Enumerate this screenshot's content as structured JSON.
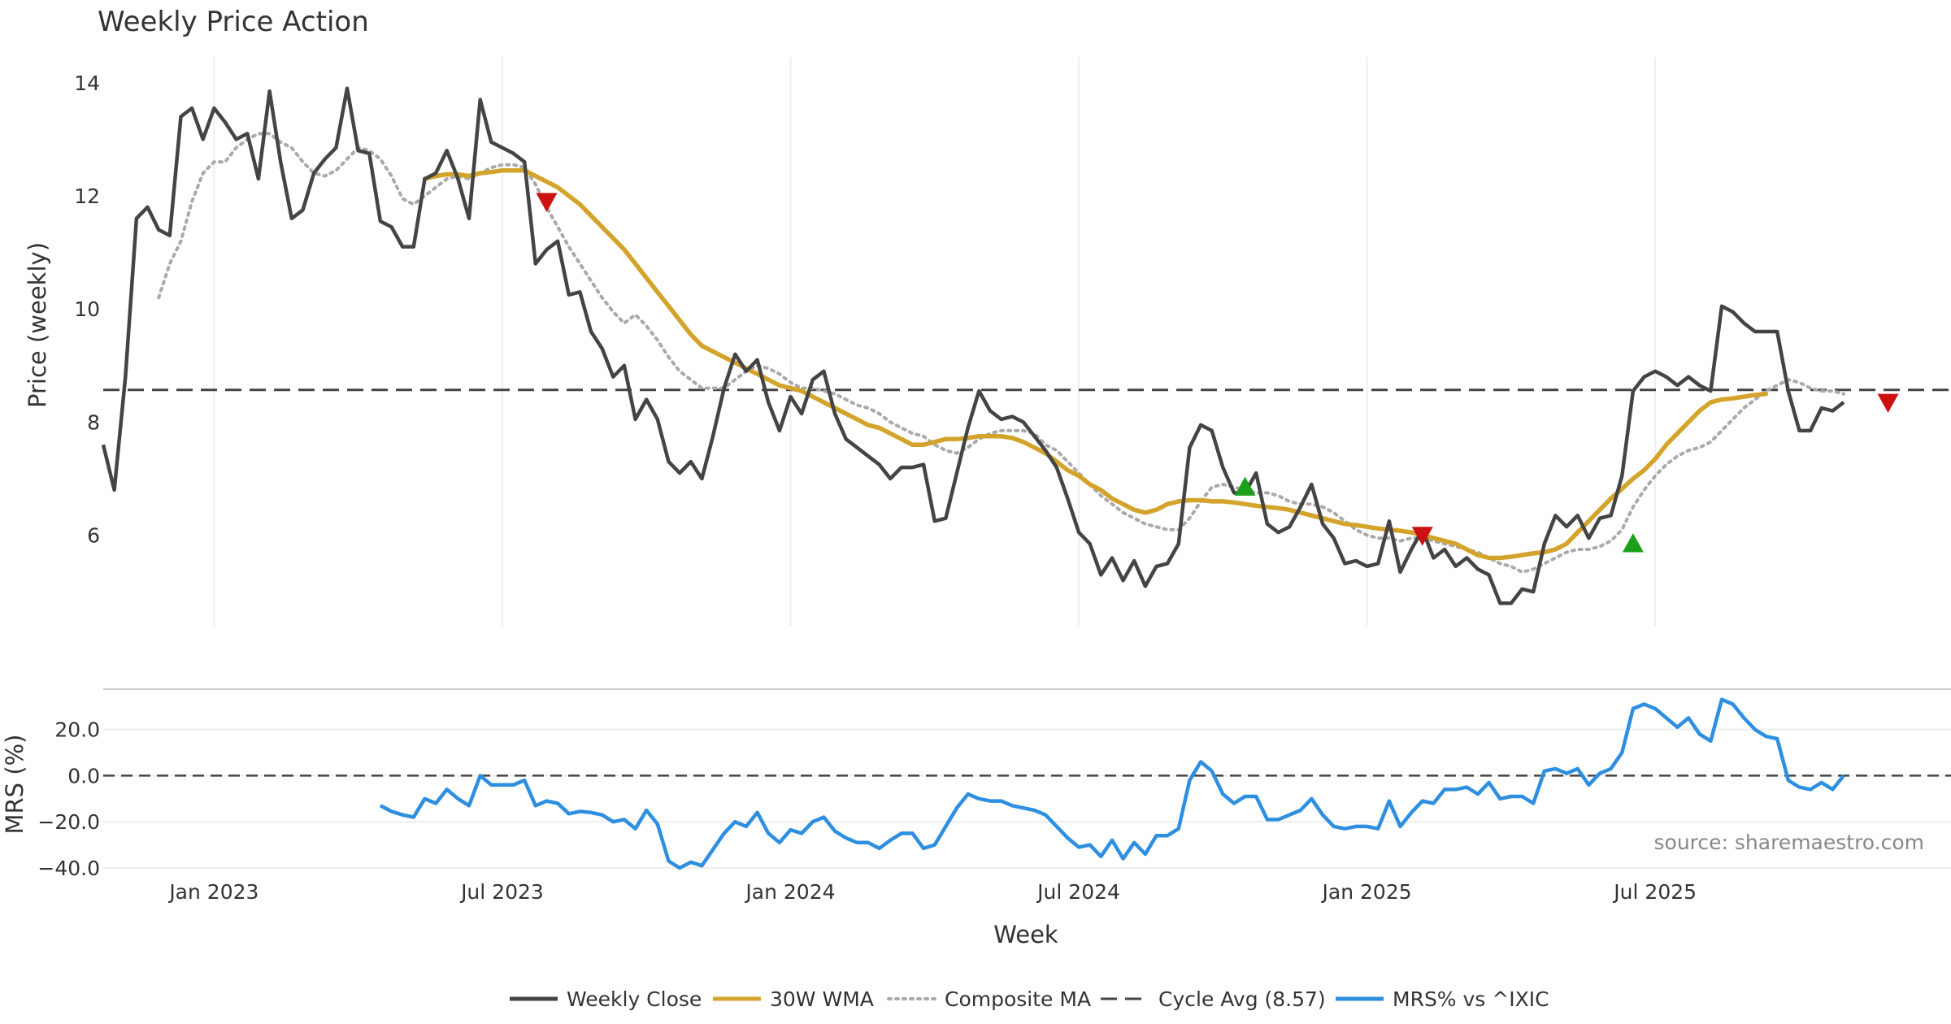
{
  "chart_data": {
    "type": "line",
    "title": "Weekly Price Action",
    "xlabel": "Week",
    "x_ticks": [
      "Jan 2023",
      "Jul 2023",
      "Jan 2024",
      "Jul 2024",
      "Jan 2025",
      "Jul 2025"
    ],
    "source": "source: sharemaestro.com",
    "colors": {
      "close": "#444444",
      "wma": "#D4A32B",
      "composite": "#AAAAAA",
      "cycle": "#444444",
      "mrs": "#2E8FE0",
      "buy": "#1AA01A",
      "sell": "#CC1111"
    },
    "price_panel": {
      "ylabel": "Price (weekly)",
      "ylim": [
        4.4,
        14.6
      ],
      "yticks": [
        "14",
        "12",
        "10",
        "8",
        "6"
      ],
      "ytick_values": [
        14,
        12,
        10,
        8,
        6
      ],
      "cycle_avg": 8.57,
      "weekly_close": [
        7.6,
        6.8,
        8.8,
        11.6,
        11.8,
        11.4,
        11.3,
        13.4,
        13.55,
        13.0,
        13.55,
        13.3,
        13.0,
        13.1,
        12.3,
        13.85,
        12.6,
        11.6,
        11.75,
        12.4,
        12.65,
        12.85,
        13.9,
        12.8,
        12.75,
        11.55,
        11.45,
        11.1,
        11.1,
        12.3,
        12.4,
        12.8,
        12.3,
        11.6,
        13.7,
        12.95,
        12.85,
        12.75,
        12.6,
        10.8,
        11.05,
        11.2,
        10.25,
        10.3,
        9.6,
        9.3,
        8.8,
        9.0,
        8.05,
        8.4,
        8.05,
        7.3,
        7.1,
        7.3,
        7.0,
        7.75,
        8.6,
        9.2,
        8.9,
        9.1,
        8.35,
        7.85,
        8.45,
        8.15,
        8.75,
        8.9,
        8.15,
        7.7,
        7.55,
        7.4,
        7.25,
        7.0,
        7.2,
        7.2,
        7.25,
        6.25,
        6.3,
        7.1,
        7.9,
        8.55,
        8.2,
        8.05,
        8.1,
        8.0,
        7.75,
        7.5,
        7.2,
        6.65,
        6.05,
        5.85,
        5.3,
        5.6,
        5.2,
        5.55,
        5.1,
        5.45,
        5.5,
        5.85,
        7.55,
        7.95,
        7.85,
        7.2,
        6.75,
        6.75,
        7.1,
        6.2,
        6.05,
        6.15,
        6.5,
        6.9,
        6.2,
        5.95,
        5.5,
        5.55,
        5.45,
        5.5,
        6.25,
        5.35,
        5.75,
        6.1,
        5.6,
        5.75,
        5.45,
        5.6,
        5.4,
        5.3,
        4.8,
        4.8,
        5.05,
        5.0,
        5.85,
        6.35,
        6.15,
        6.35,
        5.95,
        6.3,
        6.35,
        7.05,
        8.55,
        8.8,
        8.9,
        8.8,
        8.65,
        8.8,
        8.65,
        8.55,
        10.05,
        9.95,
        9.75,
        9.6,
        9.6,
        9.6,
        8.55,
        7.85,
        7.85,
        8.25,
        8.2,
        8.35
      ],
      "composite_ma": [
        null,
        null,
        null,
        null,
        null,
        10.2,
        10.8,
        11.2,
        11.9,
        12.4,
        12.6,
        12.6,
        12.85,
        13.0,
        13.1,
        13.1,
        12.95,
        12.85,
        12.6,
        12.4,
        12.35,
        12.45,
        12.65,
        12.85,
        12.8,
        12.65,
        12.35,
        11.95,
        11.85,
        12.0,
        12.15,
        12.3,
        12.35,
        12.3,
        12.4,
        12.5,
        12.55,
        12.55,
        12.5,
        12.2,
        11.8,
        11.45,
        11.1,
        10.8,
        10.5,
        10.2,
        9.95,
        9.75,
        9.9,
        9.7,
        9.45,
        9.15,
        8.9,
        8.75,
        8.6,
        8.6,
        8.6,
        8.75,
        8.9,
        9.0,
        8.95,
        8.85,
        8.7,
        8.6,
        8.6,
        8.55,
        8.5,
        8.4,
        8.3,
        8.25,
        8.15,
        8.0,
        7.9,
        7.8,
        7.75,
        7.6,
        7.5,
        7.45,
        7.55,
        7.7,
        7.8,
        7.85,
        7.85,
        7.85,
        7.8,
        7.6,
        7.5,
        7.3,
        7.1,
        6.9,
        6.7,
        6.55,
        6.4,
        6.3,
        6.2,
        6.15,
        6.1,
        6.1,
        6.3,
        6.6,
        6.85,
        6.9,
        6.85,
        6.8,
        6.75,
        6.75,
        6.7,
        6.6,
        6.55,
        6.55,
        6.5,
        6.4,
        6.25,
        6.1,
        6.0,
        5.95,
        5.95,
        5.9,
        5.95,
        5.95,
        5.9,
        5.85,
        5.8,
        5.75,
        5.7,
        5.6,
        5.5,
        5.45,
        5.35,
        5.4,
        5.5,
        5.6,
        5.7,
        5.75,
        5.75,
        5.8,
        5.9,
        6.1,
        6.5,
        6.8,
        7.05,
        7.25,
        7.4,
        7.5,
        7.55,
        7.65,
        7.85,
        8.05,
        8.25,
        8.4,
        8.55,
        8.65,
        8.75,
        8.7,
        8.6,
        8.55,
        8.55,
        8.5
      ],
      "wma_start_index": 29,
      "wma_30w": [
        12.3,
        12.35,
        12.38,
        12.38,
        12.35,
        12.4,
        12.42,
        12.45,
        12.45,
        12.45,
        12.35,
        12.25,
        12.15,
        12.0,
        11.85,
        11.65,
        11.45,
        11.25,
        11.05,
        10.8,
        10.55,
        10.3,
        10.05,
        9.8,
        9.55,
        9.35,
        9.25,
        9.15,
        9.05,
        8.95,
        8.85,
        8.75,
        8.65,
        8.6,
        8.55,
        8.45,
        8.35,
        8.25,
        8.15,
        8.05,
        7.95,
        7.9,
        7.8,
        7.7,
        7.6,
        7.6,
        7.65,
        7.7,
        7.7,
        7.72,
        7.75,
        7.75,
        7.75,
        7.72,
        7.65,
        7.55,
        7.45,
        7.3,
        7.15,
        7.05,
        6.9,
        6.8,
        6.65,
        6.55,
        6.45,
        6.4,
        6.45,
        6.55,
        6.6,
        6.62,
        6.62,
        6.6,
        6.6,
        6.58,
        6.55,
        6.52,
        6.5,
        6.48,
        6.45,
        6.4,
        6.35,
        6.3,
        6.25,
        6.2,
        6.18,
        6.15,
        6.12,
        6.1,
        6.08,
        6.05,
        6.0,
        5.95,
        5.9,
        5.85,
        5.75,
        5.65,
        5.6,
        5.6,
        5.62,
        5.65,
        5.68,
        5.7,
        5.75,
        5.85,
        6.05,
        6.25,
        6.45,
        6.65,
        6.82,
        7.0,
        7.15,
        7.35,
        7.6,
        7.8,
        8.0,
        8.2,
        8.35,
        8.4,
        8.42,
        8.45,
        8.48,
        8.5
      ],
      "signals": [
        {
          "type": "sell",
          "index": 40,
          "value": 11.9
        },
        {
          "type": "buy",
          "index": 103,
          "value": 6.85
        },
        {
          "type": "sell",
          "index": 119,
          "value": 6.0
        },
        {
          "type": "buy",
          "index": 138,
          "value": 5.85
        },
        {
          "type": "sell",
          "index": 161,
          "value": 8.35
        }
      ]
    },
    "mrs_panel": {
      "ylabel": "MRS (%)",
      "ylim": [
        -40,
        35
      ],
      "yticks": [
        "20.0",
        "0.0",
        "−20.0",
        "−40.0"
      ],
      "ytick_values": [
        20,
        0,
        -20,
        -40
      ],
      "zero_line": 0,
      "start_index": 25,
      "values": [
        -13,
        -15.5,
        -17,
        -18,
        -10,
        -12,
        -6,
        -10,
        -13,
        0,
        -4,
        -4,
        -4,
        -2,
        -13,
        -11,
        -12,
        -16.5,
        -15.5,
        -16,
        -17,
        -20,
        -19,
        -23,
        -15,
        -21,
        -37,
        -40,
        -37.5,
        -39,
        -32,
        -25,
        -20,
        -22,
        -16,
        -25,
        -29,
        -23.5,
        -25,
        -20,
        -18,
        -24,
        -27,
        -29,
        -29,
        -31.5,
        -28,
        -25,
        -25,
        -31.5,
        -30,
        -22,
        -14,
        -8,
        -10,
        -11,
        -11,
        -13,
        -14,
        -15,
        -17,
        -22,
        -27,
        -31,
        -30,
        -35,
        -28,
        -36,
        -29,
        -34,
        -26,
        -26,
        -23,
        -2,
        6,
        2,
        -8,
        -12,
        -9,
        -9,
        -19,
        -19,
        -17,
        -15,
        -10,
        -17,
        -22,
        -23,
        -22,
        -22,
        -23,
        -11,
        -22,
        -16,
        -11,
        -12,
        -6,
        -6,
        -5,
        -8,
        -3,
        -10,
        -9,
        -9,
        -12,
        2,
        3,
        1,
        3,
        -4,
        1,
        3,
        10,
        29,
        31,
        29,
        25,
        21,
        25,
        18,
        15,
        33,
        31,
        25,
        20,
        17,
        16,
        -2,
        -5,
        -6,
        -3,
        -6,
        0
      ]
    },
    "legend": [
      {
        "label": "Weekly Close",
        "style": "solid-dark"
      },
      {
        "label": "30W WMA",
        "style": "solid-gold"
      },
      {
        "label": "Composite MA",
        "style": "dotted-gray"
      },
      {
        "label": "Cycle Avg (8.57)",
        "style": "dashed-dark"
      },
      {
        "label": "MRS% vs ^IXIC",
        "style": "solid-blue"
      }
    ]
  }
}
